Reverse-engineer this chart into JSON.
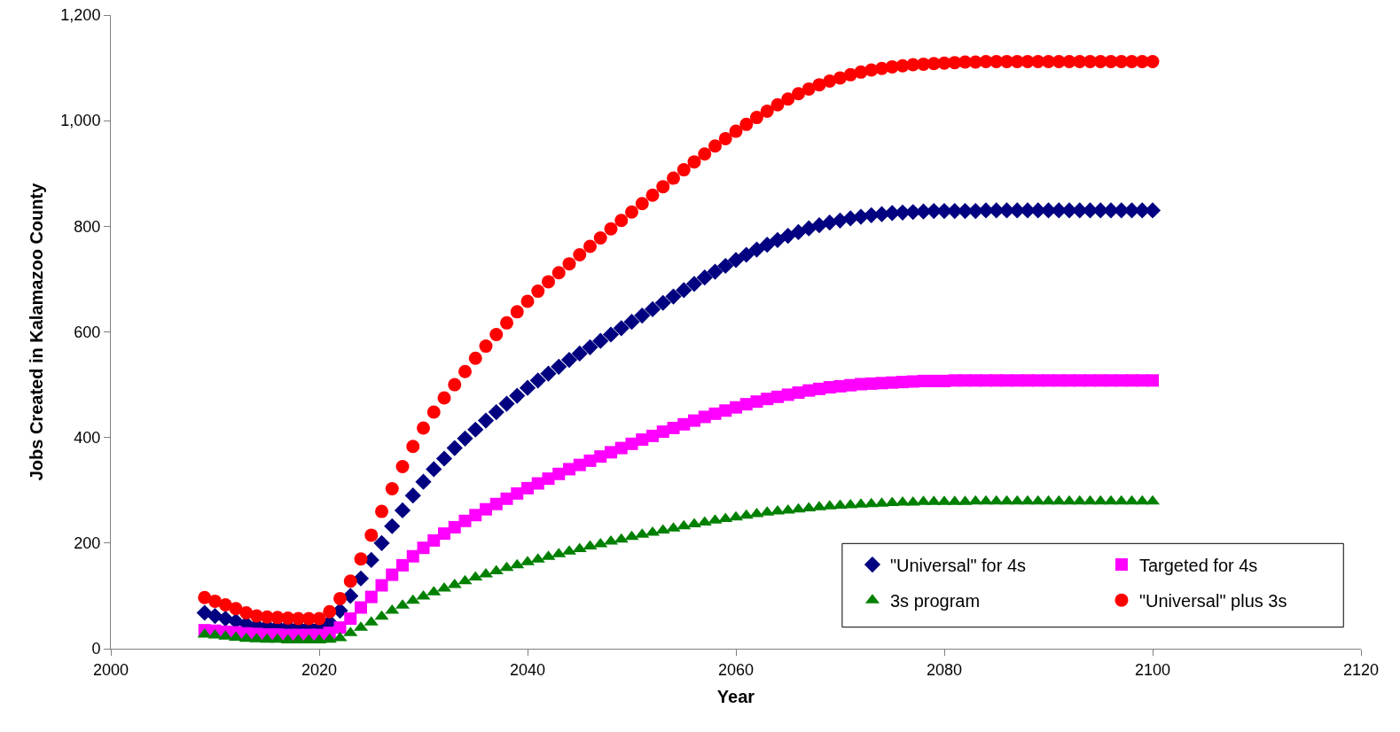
{
  "chart_data": {
    "type": "scatter",
    "xlabel": "Year",
    "ylabel": "Jobs Created in Kalamazoo County",
    "x": [
      2009,
      2010,
      2011,
      2012,
      2013,
      2014,
      2015,
      2016,
      2017,
      2018,
      2019,
      2020,
      2021,
      2022,
      2023,
      2024,
      2025,
      2026,
      2027,
      2028,
      2029,
      2030,
      2031,
      2032,
      2033,
      2034,
      2035,
      2036,
      2037,
      2038,
      2039,
      2040,
      2041,
      2042,
      2043,
      2044,
      2045,
      2046,
      2047,
      2048,
      2049,
      2050,
      2051,
      2052,
      2053,
      2054,
      2055,
      2056,
      2057,
      2058,
      2059,
      2060,
      2061,
      2062,
      2063,
      2064,
      2065,
      2066,
      2067,
      2068,
      2069,
      2070,
      2071,
      2072,
      2073,
      2074,
      2075,
      2076,
      2077,
      2078,
      2079,
      2080,
      2081,
      2082,
      2083,
      2084,
      2085,
      2086,
      2087,
      2088,
      2089,
      2090,
      2091,
      2092,
      2093,
      2094,
      2095,
      2096,
      2097,
      2098,
      2099,
      2100
    ],
    "series": [
      {
        "name": "\"Universal\" for 4s",
        "color": "#000080",
        "marker": "diamond",
        "values": [
          68,
          62,
          57,
          52,
          47,
          44,
          43,
          42,
          42,
          41,
          41,
          41,
          50,
          72,
          100,
          133,
          168,
          200,
          232,
          262,
          290,
          316,
          340,
          360,
          380,
          398,
          415,
          432,
          448,
          464,
          479,
          494,
          508,
          521,
          534,
          547,
          559,
          571,
          583,
          595,
          607,
          619,
          631,
          643,
          655,
          667,
          679,
          691,
          703,
          714,
          725,
          736,
          746,
          756,
          765,
          774,
          782,
          789,
          796,
          802,
          807,
          811,
          815,
          818,
          821,
          823,
          825,
          826,
          827,
          828,
          829,
          829,
          829,
          829,
          829,
          830,
          830,
          830,
          830,
          830,
          830,
          830,
          830,
          830,
          830,
          830,
          830,
          830,
          830,
          830,
          830,
          830
        ]
      },
      {
        "name": "Targeted for 4s",
        "color": "#ff00ff",
        "marker": "square",
        "values": [
          35,
          34,
          32,
          31,
          29,
          28,
          27,
          27,
          26,
          26,
          26,
          26,
          30,
          40,
          57,
          78,
          98,
          120,
          140,
          158,
          175,
          191,
          205,
          218,
          230,
          242,
          253,
          264,
          274,
          284,
          294,
          304,
          313,
          322,
          331,
          340,
          348,
          356,
          364,
          372,
          380,
          388,
          396,
          403,
          411,
          418,
          425,
          432,
          439,
          445,
          451,
          457,
          463,
          468,
          473,
          477,
          481,
          485,
          489,
          492,
          495,
          497,
          499,
          501,
          502,
          503,
          504,
          505,
          506,
          507,
          507,
          507,
          508,
          508,
          508,
          508,
          508,
          508,
          508,
          508,
          508,
          508,
          508,
          508,
          508,
          508,
          508,
          508,
          508,
          508,
          508,
          508
        ]
      },
      {
        "name": "3s program",
        "color": "#008000",
        "marker": "triangle",
        "values": [
          27,
          25,
          23,
          21,
          19,
          18,
          17,
          17,
          16,
          16,
          16,
          16,
          17,
          20,
          30,
          40,
          50,
          61,
          72,
          82,
          91,
          99,
          107,
          114,
          121,
          128,
          135,
          141,
          147,
          153,
          158,
          164,
          169,
          174,
          179,
          184,
          189,
          194,
          198,
          203,
          207,
          212,
          216,
          220,
          224,
          228,
          232,
          236,
          239,
          243,
          246,
          249,
          252,
          255,
          258,
          260,
          262,
          264,
          266,
          268,
          270,
          271,
          272,
          273,
          274,
          275,
          276,
          277,
          277,
          278,
          278,
          278,
          278,
          278,
          279,
          279,
          279,
          279,
          279,
          279,
          279,
          279,
          279,
          279,
          279,
          279,
          279,
          279,
          279,
          279,
          279,
          279
        ]
      },
      {
        "name": "\"Universal\" plus 3s",
        "color": "#ff0000",
        "marker": "circle",
        "values": [
          97,
          90,
          83,
          76,
          68,
          62,
          60,
          59,
          58,
          57,
          57,
          57,
          70,
          95,
          128,
          170,
          215,
          260,
          303,
          345,
          383,
          418,
          448,
          475,
          500,
          525,
          550,
          573,
          595,
          617,
          638,
          658,
          677,
          695,
          712,
          729,
          746,
          762,
          778,
          795,
          811,
          827,
          843,
          859,
          875,
          891,
          907,
          922,
          937,
          952,
          966,
          980,
          993,
          1006,
          1018,
          1030,
          1041,
          1051,
          1060,
          1068,
          1075,
          1081,
          1087,
          1092,
          1096,
          1099,
          1102,
          1104,
          1106,
          1107,
          1108,
          1109,
          1110,
          1111,
          1111,
          1112,
          1112,
          1112,
          1112,
          1112,
          1112,
          1112,
          1112,
          1112,
          1112,
          1112,
          1112,
          1112,
          1112,
          1112,
          1112,
          1112
        ]
      }
    ],
    "xlim": [
      2000,
      2120
    ],
    "xticks": [
      2000,
      2020,
      2040,
      2060,
      2080,
      2100,
      2120
    ],
    "ylim": [
      0,
      1200
    ],
    "yticks": [
      0,
      {
        "value": 200,
        "label": "200"
      },
      {
        "value": 400,
        "label": "400"
      },
      {
        "value": 600,
        "label": "600"
      },
      {
        "value": 800,
        "label": "800"
      },
      {
        "value": 1000,
        "label": "1,000"
      },
      {
        "value": 1200,
        "label": "1,200"
      }
    ],
    "grid": false,
    "legend": "bottom right"
  }
}
